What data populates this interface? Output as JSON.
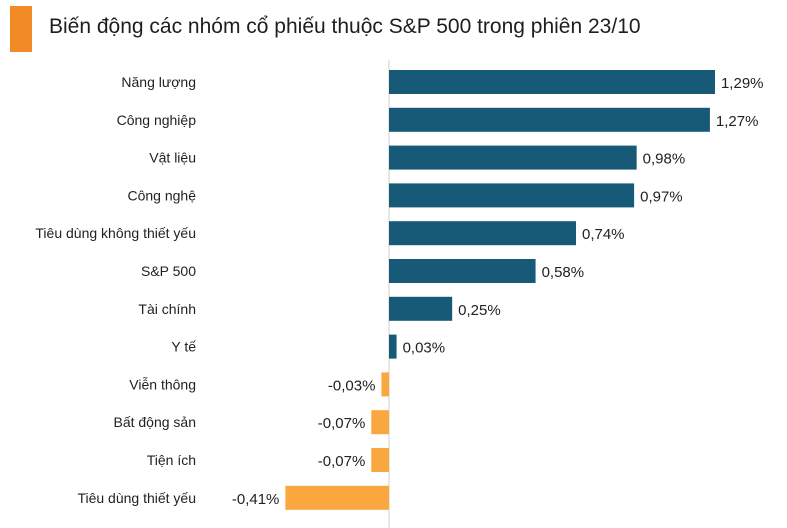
{
  "chart_data": {
    "type": "bar",
    "orientation": "horizontal",
    "title": "Biến động các nhóm cổ phiếu thuộc S&P 500 trong phiên 23/10",
    "categories": [
      "Năng lượng",
      "Công nghiệp",
      "Vật liệu",
      "Công nghệ",
      "Tiêu dùng không thiết yếu",
      "S&P 500",
      "Tài chính",
      "Y tế",
      "Viễn thông",
      "Bất động sản",
      "Tiện ích",
      "Tiêu dùng thiết yếu"
    ],
    "values": [
      1.29,
      1.27,
      0.98,
      0.97,
      0.74,
      0.58,
      0.25,
      0.03,
      -0.03,
      -0.07,
      -0.07,
      -0.41
    ],
    "data_labels": [
      "1,29%",
      "1,27%",
      "0,98%",
      "0,97%",
      "0,74%",
      "0,58%",
      "0,25%",
      "0,03%",
      "-0,03%",
      "-0,07%",
      "-0,07%",
      "-0,41%"
    ],
    "unit": "%",
    "grid": false,
    "colors": {
      "positive": "#175a78",
      "negative": "#f9a73e",
      "accent": "#f28a26"
    }
  }
}
